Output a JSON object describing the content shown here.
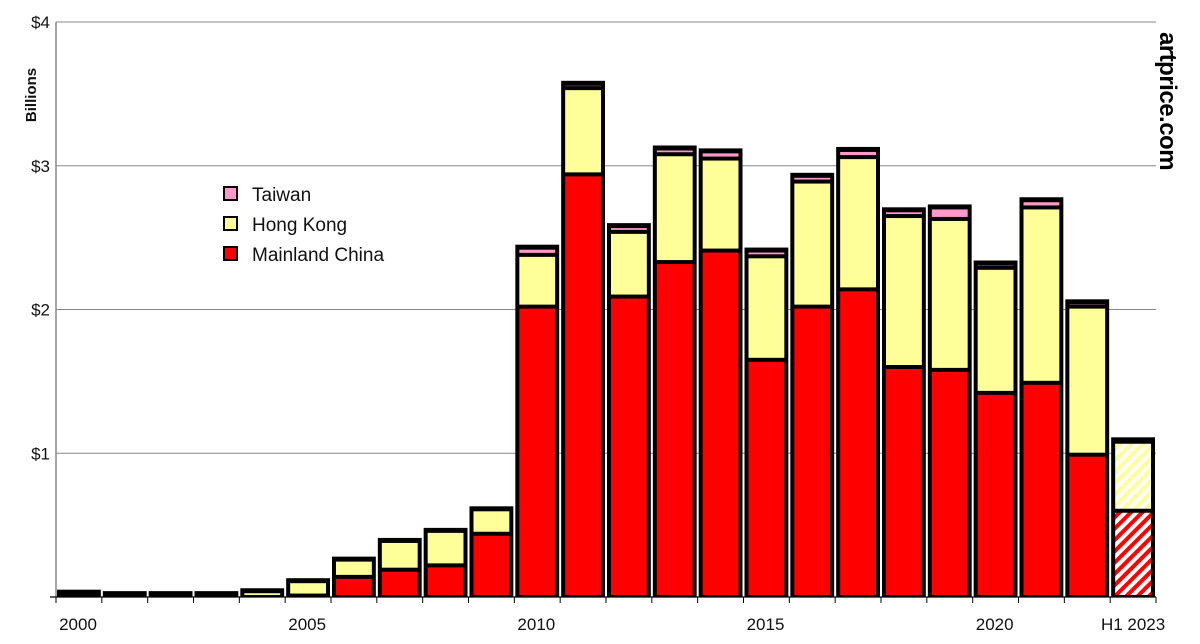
{
  "chart_data": {
    "type": "bar",
    "stacked": true,
    "title": "",
    "ylabel": "Billions",
    "xlabel": "",
    "ylim": [
      0,
      4
    ],
    "yticks": [
      {
        "v": 1,
        "label": "$1"
      },
      {
        "v": 2,
        "label": "$2"
      },
      {
        "v": 3,
        "label": "$3"
      },
      {
        "v": 4,
        "label": "$4"
      }
    ],
    "grid": true,
    "legend_position": "upper-left",
    "watermark": "artprice.com",
    "categories": [
      "2000",
      "2001",
      "2002",
      "2003",
      "2004",
      "2005",
      "2006",
      "2007",
      "2008",
      "2009",
      "2010",
      "2011",
      "2012",
      "2013",
      "2014",
      "2015",
      "2016",
      "2017",
      "2018",
      "2019",
      "2020",
      "2021",
      "2022",
      "H1 2023"
    ],
    "xtick_labels": [
      {
        "i": 0,
        "label": "2000"
      },
      {
        "i": 5,
        "label": "2005"
      },
      {
        "i": 10,
        "label": "2010"
      },
      {
        "i": 15,
        "label": "2015"
      },
      {
        "i": 20,
        "label": "2020"
      },
      {
        "i": 23,
        "label": "H1 2023"
      }
    ],
    "series": [
      {
        "name": "Mainland China",
        "color": "#ff0000",
        "values": [
          0.02,
          0.01,
          0.01,
          0.01,
          0.0,
          0.01,
          0.14,
          0.19,
          0.22,
          0.44,
          2.02,
          2.94,
          2.09,
          2.33,
          2.41,
          1.65,
          2.02,
          2.14,
          1.6,
          1.58,
          1.42,
          1.49,
          0.99,
          0.6
        ]
      },
      {
        "name": "Hong Kong",
        "color": "#ffff99",
        "values": [
          0.01,
          0.01,
          0.01,
          0.01,
          0.04,
          0.1,
          0.12,
          0.2,
          0.24,
          0.17,
          0.36,
          0.6,
          0.45,
          0.75,
          0.64,
          0.72,
          0.87,
          0.92,
          1.05,
          1.05,
          0.87,
          1.22,
          1.03,
          0.48
        ]
      },
      {
        "name": "Taiwan",
        "color": "#ff99cc",
        "values": [
          0,
          0,
          0,
          0,
          0,
          0,
          0,
          0,
          0,
          0,
          0.05,
          0.03,
          0.04,
          0.04,
          0.05,
          0.04,
          0.04,
          0.05,
          0.04,
          0.08,
          0.03,
          0.05,
          0.03,
          0.01
        ]
      }
    ],
    "notes": "H1 2023 bar shown hatched (partial year)"
  }
}
